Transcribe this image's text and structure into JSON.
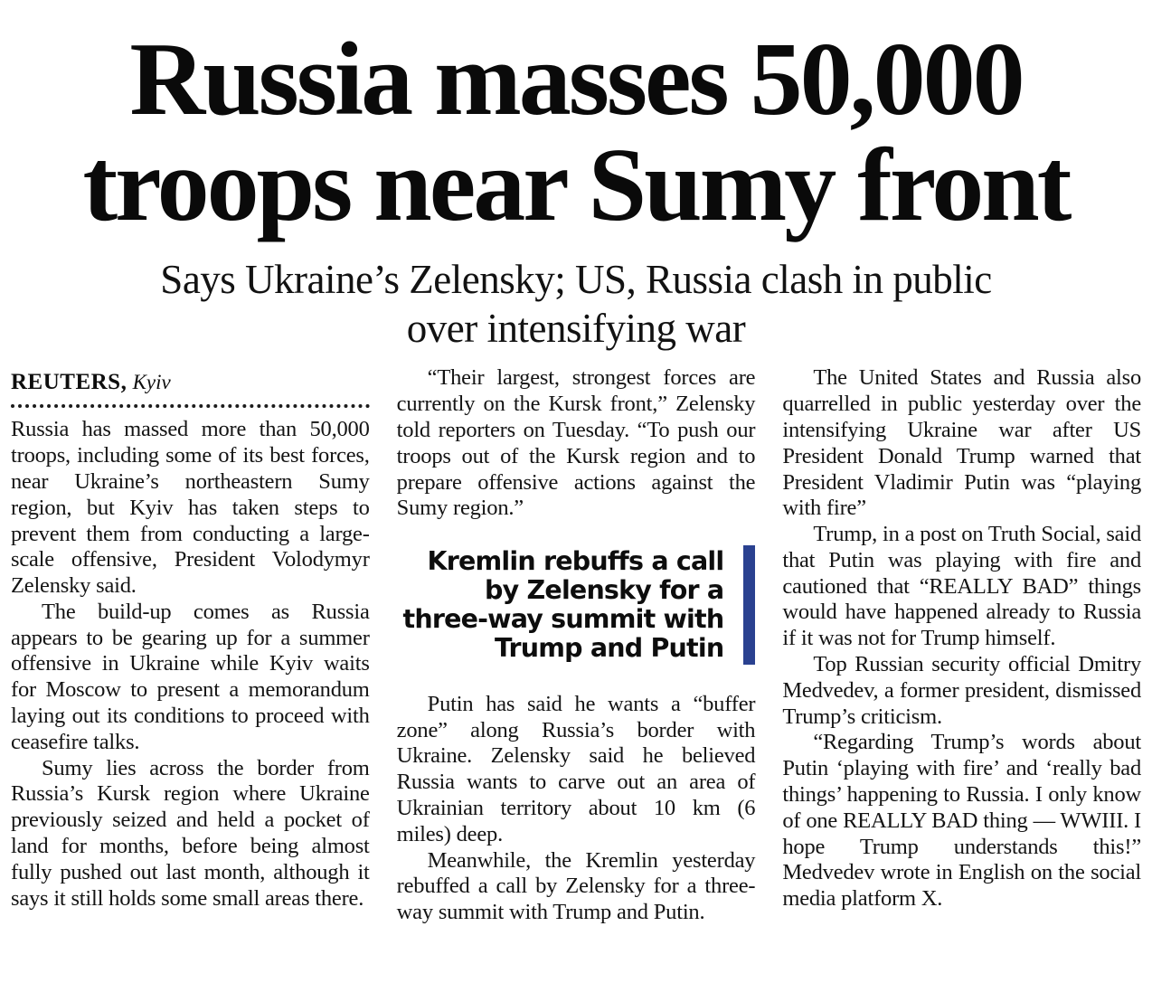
{
  "colors": {
    "accent_bar": "#2a4190",
    "text": "#141414",
    "background": "#ffffff"
  },
  "article": {
    "headline_lines": [
      "Russia masses 50,000",
      "troops near Sumy front"
    ],
    "subheadline_lines": [
      "Says Ukraine’s Zelensky; US, Russia clash in public",
      "over intensifying war"
    ],
    "byline": {
      "agency": "REUTERS,",
      "location": "Kyiv"
    },
    "col1": {
      "paragraphs": [
        "Russia has massed more than 50,000 troops, including some of its best forces, near Ukraine’s northeastern Sumy region, but Kyiv has taken steps to prevent them from conducting a large-scale offensive, President Volodymyr Zelensky said.",
        "The build-up comes as Russia appears to be gearing up for a summer offensive in Ukraine while Kyiv waits for Moscow to present a memorandum laying out its conditions to proceed with ceasefire talks.",
        "Sumy lies across the border from Russia’s Kursk region where Ukraine previously seized and held a pocket of land for months, before being almost fully pushed out last month, although it says it still holds some small areas there."
      ]
    },
    "col2": {
      "lead": "“Their largest, strongest forces are currently on the Kursk front,” Zelensky told reporters on Tuesday. “To push our troops out of the Kursk region and to prepare offensive actions against the Sumy region.”",
      "pull_quote": "Kremlin rebuffs a call by Zelensky for a three-way summit with Trump and Putin",
      "paragraphs": [
        "Putin has said he wants a “buffer zone” along Russia’s border with Ukraine. Zelensky said he believed Russia wants to carve out an area of Ukrainian territory about 10 km (6 miles) deep.",
        "Meanwhile, the Kremlin yesterday rebuffed a call by Zelensky for a three-way summit with Trump and Putin."
      ]
    },
    "col3": {
      "paragraphs": [
        "The United States and Russia also quarrelled in public yesterday over the intensifying Ukraine war after US President Donald Trump warned that President Vladimir Putin was “playing with fire”",
        "Trump, in a post on Truth Social, said that Putin was playing with fire and cautioned that “REALLY BAD” things would have happened already to Russia if it was not for Trump himself.",
        "Top Russian security official Dmitry Medvedev, a former president, dismissed Trump’s criticism.",
        "“Regarding Trump’s words about Putin ‘playing with fire’ and ‘really bad things’ happening to Russia. I only know of one REALLY BAD thing — WWIII. I hope Trump understands this!” Medvedev wrote in English on the social media platform X."
      ]
    }
  }
}
